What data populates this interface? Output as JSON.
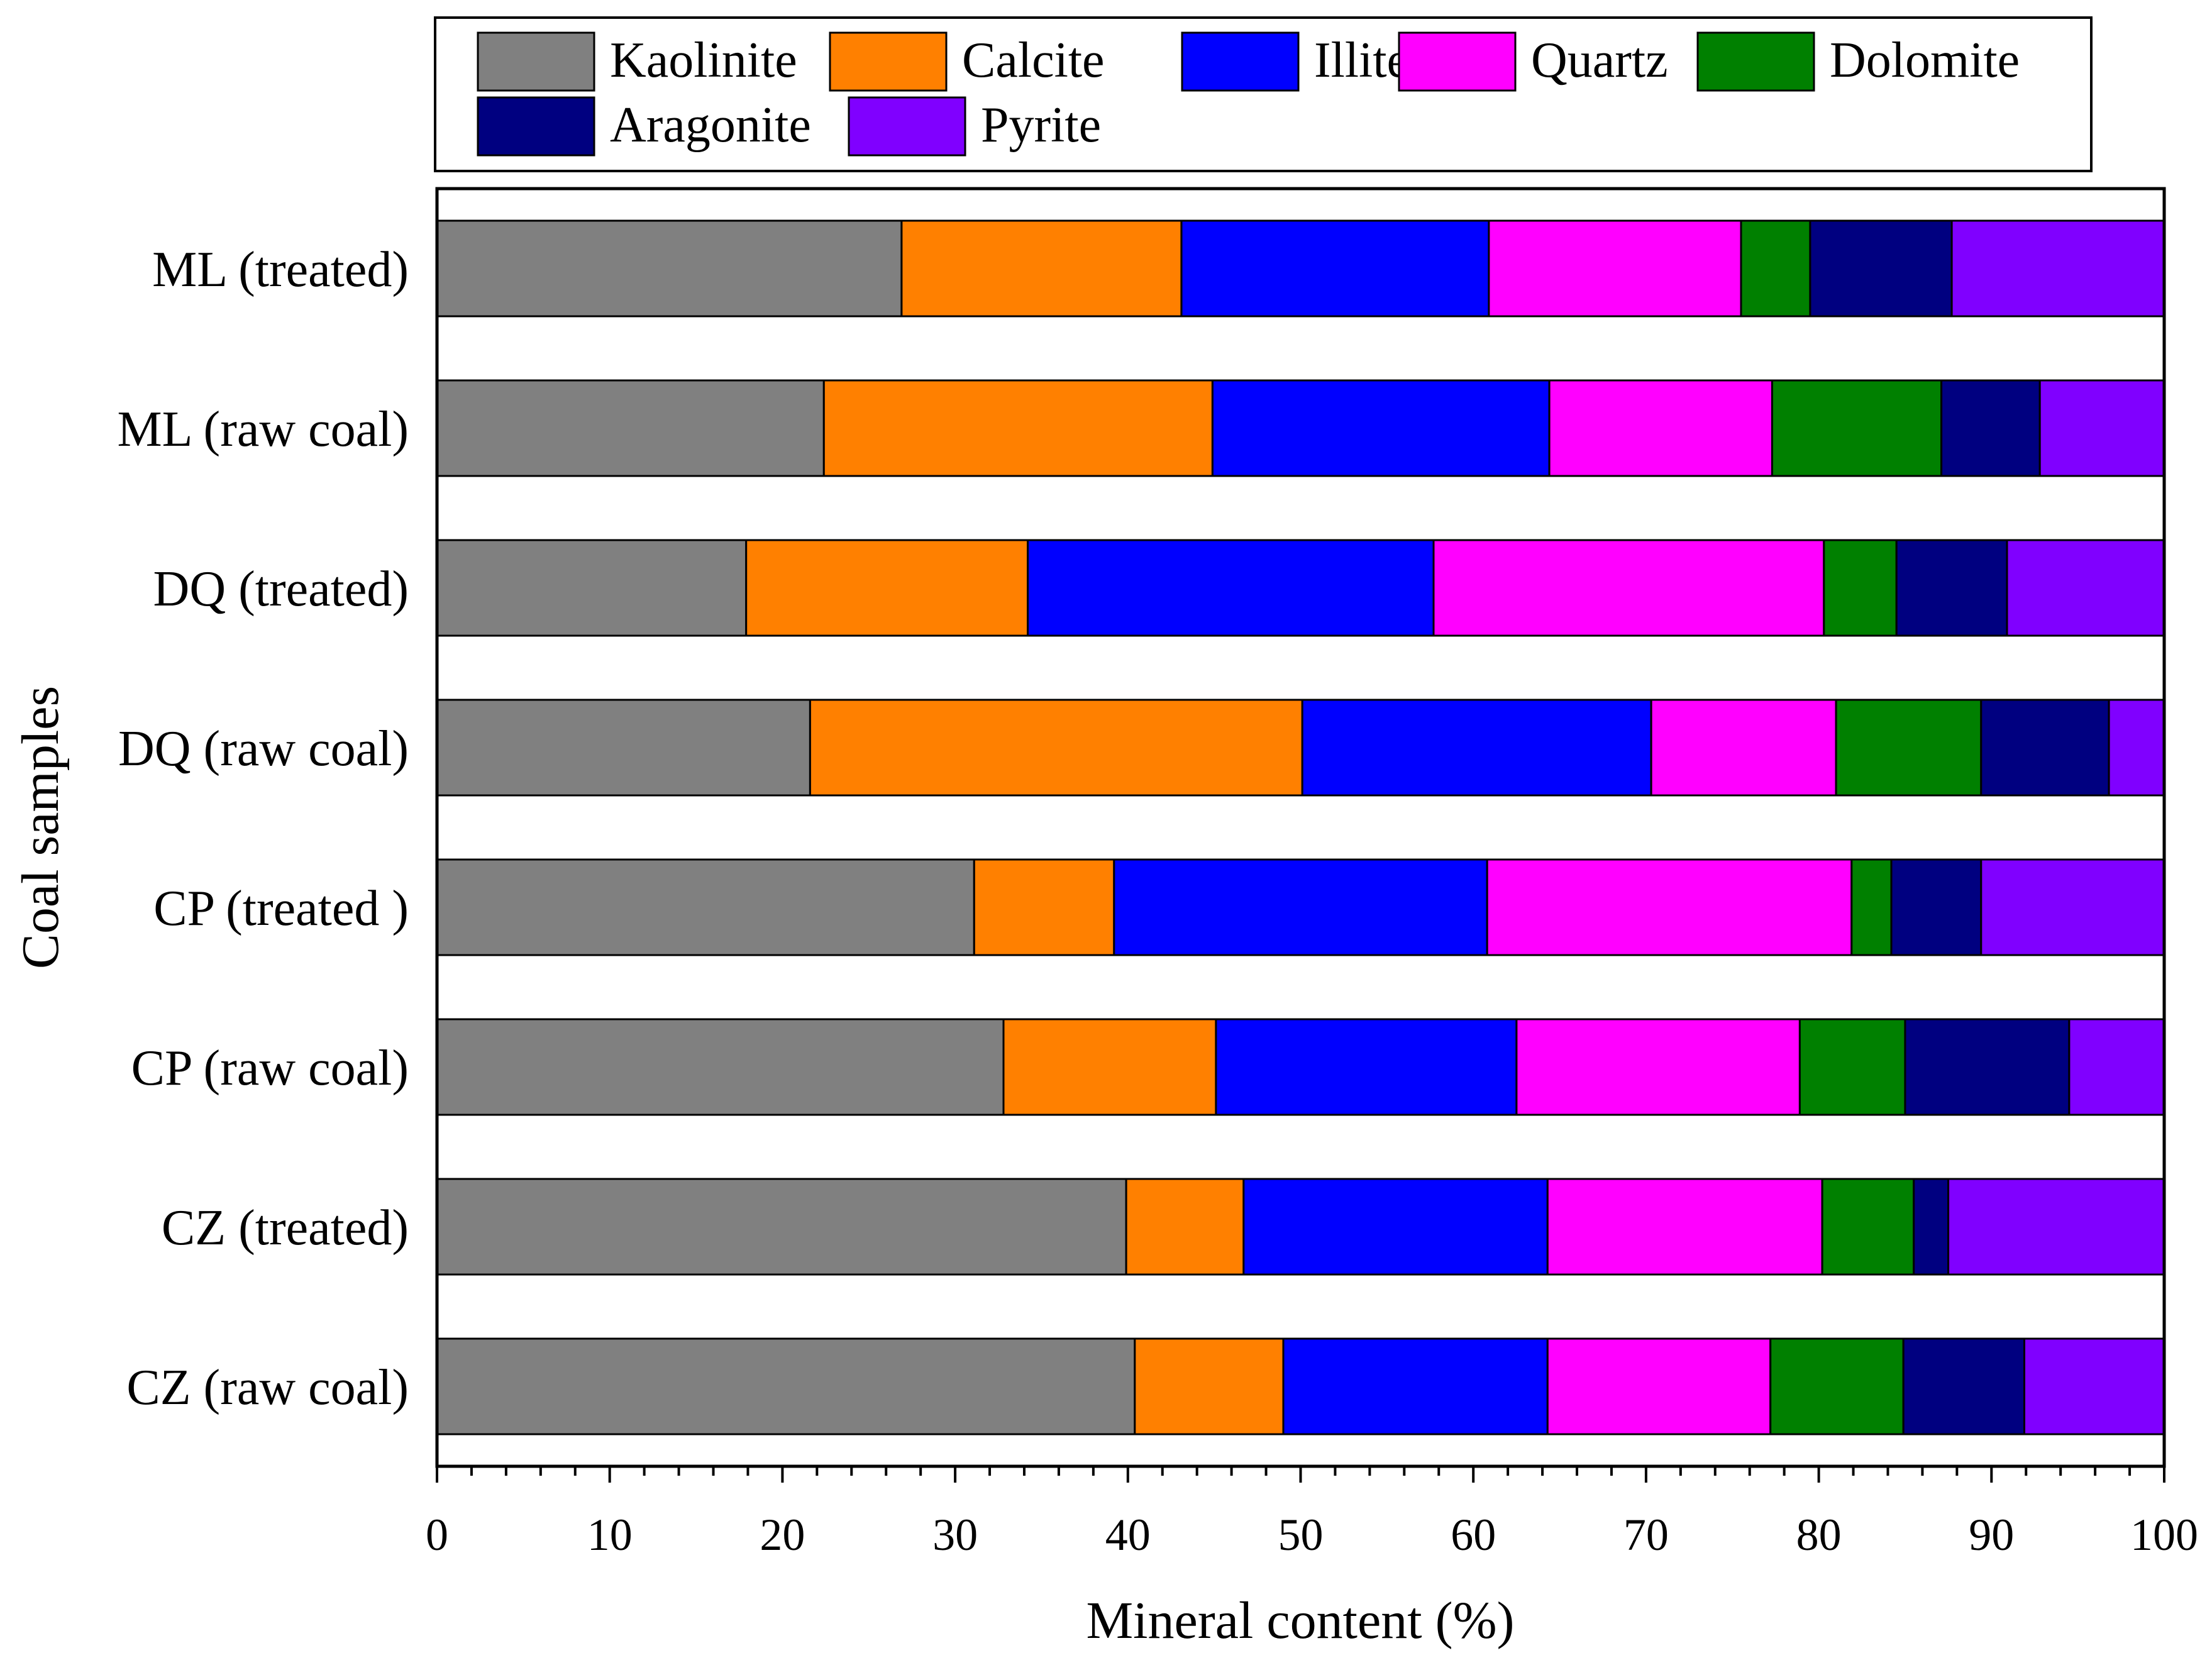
{
  "chart_data": {
    "type": "bar",
    "orientation": "horizontal",
    "stacked": true,
    "title": "",
    "xlabel": "Mineral content (%)",
    "ylabel": "Coal samples",
    "xlim": [
      0,
      100
    ],
    "xticks": [
      0,
      10,
      20,
      30,
      40,
      50,
      60,
      70,
      80,
      90,
      100
    ],
    "xtick_labels": [
      "0",
      "10",
      "20",
      "30",
      "40",
      "50",
      "60",
      "70",
      "80",
      "90",
      "100"
    ],
    "categories": [
      "ML (treated)",
      "ML (raw coal)",
      "DQ (treated)",
      "DQ (raw coal)",
      "CP (treated )",
      "CP (raw coal)",
      "CZ (treated)",
      "CZ (raw coal)"
    ],
    "legend_position": "top",
    "series": [
      {
        "name": "Kaolinite",
        "color": "#808080",
        "values": [
          26.9,
          22.4,
          17.9,
          21.6,
          31.1,
          32.8,
          39.9,
          40.4
        ]
      },
      {
        "name": "Calcite",
        "color": "#ff8000",
        "values": [
          16.2,
          22.5,
          16.3,
          28.5,
          8.1,
          12.3,
          6.8,
          8.6
        ]
      },
      {
        "name": "Illite",
        "color": "#0000ff",
        "values": [
          17.8,
          19.5,
          23.5,
          20.2,
          21.6,
          17.4,
          17.6,
          15.3
        ]
      },
      {
        "name": "Quartz",
        "color": "#ff00ff",
        "values": [
          14.6,
          12.9,
          22.6,
          10.7,
          21.1,
          16.4,
          15.9,
          12.9
        ]
      },
      {
        "name": "Dolomite",
        "color": "#008000",
        "values": [
          4.0,
          9.8,
          4.2,
          8.4,
          2.3,
          6.1,
          5.3,
          7.7
        ]
      },
      {
        "name": "Aragonite",
        "color": "#000080",
        "values": [
          8.2,
          5.7,
          6.4,
          7.4,
          5.2,
          9.5,
          2.0,
          7.0
        ]
      },
      {
        "name": "Pyrite",
        "color": "#8000ff",
        "values": [
          12.3,
          7.2,
          9.1,
          3.2,
          10.6,
          5.5,
          12.5,
          8.1
        ]
      }
    ]
  }
}
